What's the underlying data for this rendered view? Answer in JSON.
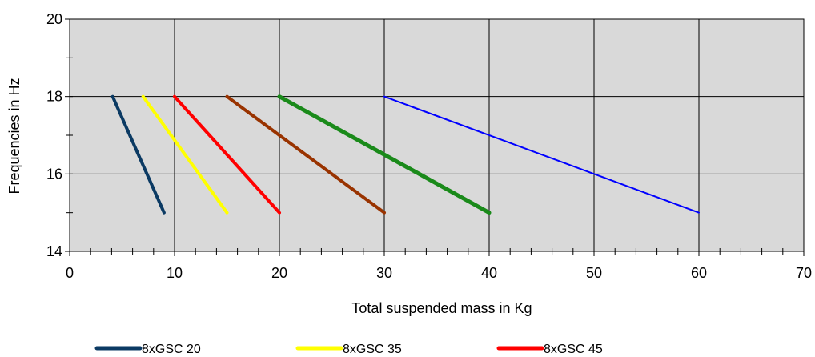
{
  "chart_data": {
    "type": "line",
    "title": "",
    "xlabel": "Total suspended mass in Kg",
    "ylabel": "Frequencies in Hz",
    "xlim": [
      0,
      70
    ],
    "ylim": [
      14,
      20
    ],
    "x_ticks": [
      0,
      10,
      20,
      30,
      40,
      50,
      60,
      70
    ],
    "y_ticks": [
      14,
      16,
      18,
      20
    ],
    "grid": true,
    "plot_background": "#d9d9d9",
    "legend_position": "bottom",
    "series": [
      {
        "name": "8xGSC 20",
        "color": "#0b3a63",
        "width": 4,
        "points": [
          [
            4.1,
            18
          ],
          [
            9,
            15
          ]
        ]
      },
      {
        "name": "8xGSC 35",
        "color": "#ffff00",
        "width": 4,
        "points": [
          [
            7,
            18
          ],
          [
            15,
            15
          ]
        ]
      },
      {
        "name": "8xGSC 45",
        "color": "#ff0000",
        "width": 4,
        "points": [
          [
            10,
            18
          ],
          [
            20,
            15
          ]
        ]
      },
      {
        "name": null,
        "color": "#993300",
        "width": 4,
        "points": [
          [
            15,
            18
          ],
          [
            30,
            15
          ]
        ]
      },
      {
        "name": null,
        "color": "#1a8a1a",
        "width": 5,
        "points": [
          [
            20,
            18
          ],
          [
            40,
            15
          ]
        ]
      },
      {
        "name": null,
        "color": "#0000ff",
        "width": 2,
        "points": [
          [
            30,
            18
          ],
          [
            60,
            15
          ]
        ]
      }
    ]
  }
}
